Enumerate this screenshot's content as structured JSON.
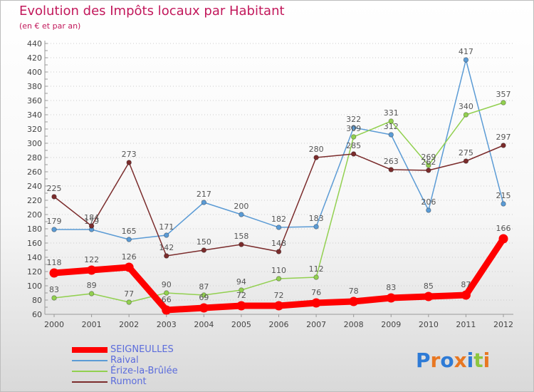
{
  "chart_data": {
    "type": "line",
    "title": "Evolution des Impôts locaux par Habitant",
    "subtitle": "(en € et par an)",
    "categories": [
      "2000",
      "2001",
      "2002",
      "2003",
      "2004",
      "2005",
      "2006",
      "2007",
      "2008",
      "2009",
      "2010",
      "2011",
      "2012"
    ],
    "ylim": [
      60,
      440
    ],
    "ytick_step": 20,
    "grid": "horizontal-dotted",
    "legend_position": "bottom-left",
    "series": [
      {
        "name": "SEIGNEULLES",
        "color": "#ff0000",
        "values": [
          118,
          122,
          126,
          66,
          69,
          72,
          72,
          76,
          78,
          83,
          85,
          87,
          166
        ]
      },
      {
        "name": "Raival",
        "color": "#5b9bd5",
        "values": [
          179,
          179,
          165,
          171,
          217,
          200,
          182,
          183,
          322,
          312,
          206,
          417,
          215
        ]
      },
      {
        "name": "Érize-la-Brûlée",
        "color": "#92d050",
        "values": [
          83,
          89,
          77,
          90,
          87,
          94,
          110,
          112,
          309,
          331,
          269,
          340,
          357
        ]
      },
      {
        "name": "Rumont",
        "color": "#7b2c2c",
        "values": [
          225,
          184,
          273,
          142,
          150,
          158,
          148,
          280,
          285,
          263,
          262,
          275,
          297
        ]
      }
    ]
  },
  "logo": {
    "text": "Proxiti",
    "colors": [
      "#2e7bd6",
      "#e87722",
      "#2e7bd6",
      "#e87722",
      "#2e7bd6",
      "#8dc63f",
      "#e87722"
    ]
  }
}
